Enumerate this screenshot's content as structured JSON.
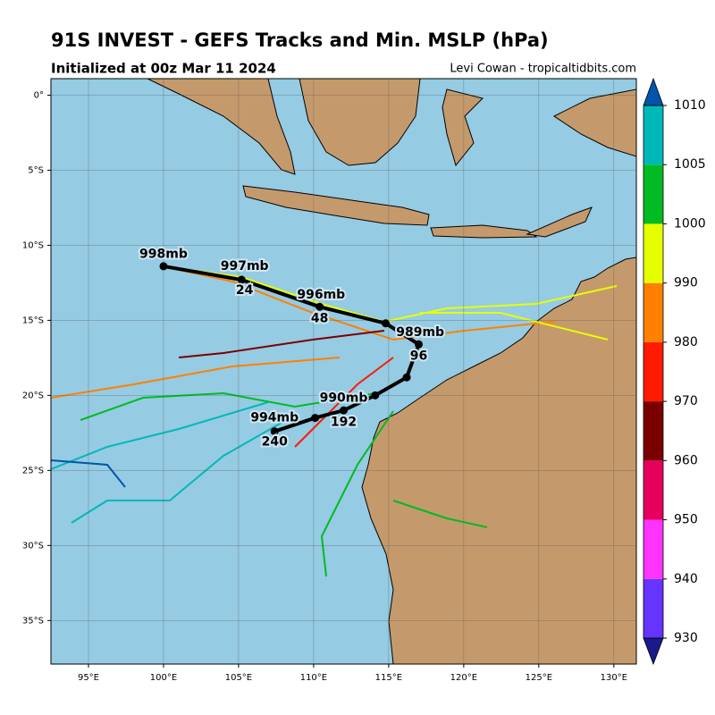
{
  "header": {
    "title": "91S INVEST - GEFS Tracks and Min. MSLP (hPa)",
    "subtitle": "Initialized at 00z Mar 11 2024",
    "credit": "Levi Cowan - tropicaltidbits.com"
  },
  "map": {
    "xlim": [
      92.5,
      131.5
    ],
    "ylim": [
      -37.9,
      1.1
    ],
    "xticks": [
      {
        "value": 95,
        "label": "95°E"
      },
      {
        "value": 100,
        "label": "100°E"
      },
      {
        "value": 105,
        "label": "105°E"
      },
      {
        "value": 110,
        "label": "110°E"
      },
      {
        "value": 115,
        "label": "115°E"
      },
      {
        "value": 120,
        "label": "120°E"
      },
      {
        "value": 125,
        "label": "125°E"
      },
      {
        "value": 130,
        "label": "130°E"
      }
    ],
    "yticks": [
      {
        "value": 0,
        "label": "0°"
      },
      {
        "value": -5,
        "label": "5°S"
      },
      {
        "value": -10,
        "label": "10°S"
      },
      {
        "value": -15,
        "label": "15°S"
      },
      {
        "value": -20,
        "label": "20°S"
      },
      {
        "value": -25,
        "label": "25°S"
      },
      {
        "value": -30,
        "label": "30°S"
      },
      {
        "value": -35,
        "label": "35°S"
      }
    ],
    "mean_track": {
      "color": "#000000",
      "lon": [
        100.0,
        105.2,
        110.4,
        114.8,
        117.0,
        116.2,
        114.1,
        112.0,
        110.1,
        107.4
      ],
      "lat": [
        -11.4,
        -12.3,
        -14.1,
        -15.2,
        -16.6,
        -18.8,
        -20.0,
        -21.0,
        -21.5,
        -22.4
      ]
    },
    "annotations": [
      {
        "text": "998mb",
        "lon": 100.0,
        "lat": -10.6
      },
      {
        "text": "997mb",
        "lon": 105.4,
        "lat": -11.4
      },
      {
        "text": "24",
        "lon": 105.4,
        "lat": -13.0
      },
      {
        "text": "996mb",
        "lon": 110.5,
        "lat": -13.3
      },
      {
        "text": "48",
        "lon": 110.4,
        "lat": -14.9
      },
      {
        "text": "989mb",
        "lon": 117.1,
        "lat": -15.8
      },
      {
        "text": "96",
        "lon": 117.0,
        "lat": -17.4
      },
      {
        "text": "990mb",
        "lon": 112.0,
        "lat": -20.2
      },
      {
        "text": "192",
        "lon": 112.0,
        "lat": -21.8
      },
      {
        "text": "994mb",
        "lon": 107.4,
        "lat": -21.5
      },
      {
        "text": "240",
        "lon": 107.4,
        "lat": -23.1
      }
    ]
  },
  "colorbar": {
    "ticks": [
      930,
      940,
      950,
      960,
      970,
      980,
      990,
      1000,
      1005,
      1010
    ],
    "colors": [
      "#6633ff",
      "#ff33ff",
      "#e6005c",
      "#7a0000",
      "#ff1a00",
      "#ff8000",
      "#e6ff00",
      "#00bb22",
      "#00b8b8"
    ],
    "under_color": "#1a1a8c",
    "over_color": "#0055aa"
  }
}
